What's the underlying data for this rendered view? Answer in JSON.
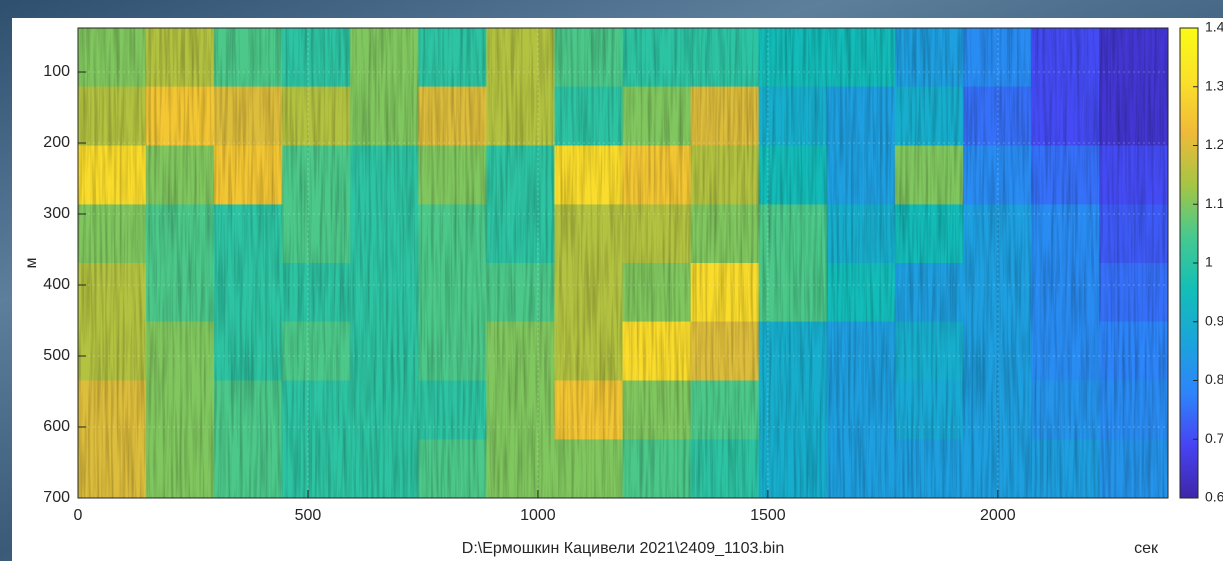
{
  "chart_data": {
    "type": "heatmap",
    "xlabel": "D:\\Ермошкин Кацивели 2021\\2409_1103.bin",
    "xunit": "сек",
    "ylabel": "м",
    "x": [
      74,
      222,
      370,
      518,
      666,
      814,
      962,
      1110,
      1258,
      1406,
      1554,
      1702,
      1850,
      1998,
      2146,
      2294
    ],
    "y": [
      79,
      162,
      245,
      328,
      410,
      493,
      576,
      659
    ],
    "z": [
      [
        1.1,
        1.15,
        1.05,
        1.0,
        1.1,
        1.0,
        1.15,
        1.05,
        1.0,
        1.0,
        0.95,
        0.95,
        0.85,
        0.8,
        0.7,
        0.65
      ],
      [
        1.15,
        1.25,
        1.2,
        1.15,
        1.1,
        1.2,
        1.15,
        1.0,
        1.1,
        1.2,
        0.9,
        0.85,
        0.9,
        0.75,
        0.7,
        0.65
      ],
      [
        1.3,
        1.1,
        1.25,
        1.05,
        1.0,
        1.1,
        1.0,
        1.3,
        1.25,
        1.15,
        0.95,
        0.85,
        1.1,
        0.8,
        0.75,
        0.7
      ],
      [
        1.1,
        1.05,
        1.0,
        1.05,
        1.0,
        1.05,
        1.0,
        1.15,
        1.15,
        1.1,
        1.05,
        0.9,
        0.95,
        0.85,
        0.8,
        0.72
      ],
      [
        1.15,
        1.05,
        1.0,
        1.0,
        1.0,
        1.05,
        1.05,
        1.15,
        1.1,
        1.3,
        1.05,
        0.95,
        0.85,
        0.85,
        0.8,
        0.75
      ],
      [
        1.15,
        1.1,
        1.0,
        1.05,
        1.0,
        1.05,
        1.1,
        1.15,
        1.3,
        1.2,
        0.9,
        0.85,
        0.9,
        0.85,
        0.8,
        0.78
      ],
      [
        1.2,
        1.1,
        1.05,
        1.0,
        1.0,
        1.0,
        1.1,
        1.25,
        1.1,
        1.05,
        0.9,
        0.85,
        0.88,
        0.85,
        0.82,
        0.8
      ],
      [
        1.2,
        1.1,
        1.05,
        1.0,
        1.0,
        1.05,
        1.1,
        1.1,
        1.05,
        1.0,
        0.9,
        0.85,
        0.85,
        0.85,
        0.85,
        0.82
      ]
    ],
    "xlim": [
      0,
      2370
    ],
    "xticks": [
      0,
      500,
      1000,
      1500,
      2000
    ],
    "ylim": [
      38,
      700
    ],
    "yticks": [
      100,
      200,
      300,
      400,
      500,
      600,
      700
    ],
    "y_reversed": true,
    "clim": [
      0.6,
      1.4
    ],
    "cticks": [
      0.6,
      0.7,
      0.8,
      0.9,
      1,
      1.1,
      1.2,
      1.3,
      1.4
    ],
    "colormap": [
      "#3e26a8",
      "#4743f3",
      "#2e84fb",
      "#1aa5da",
      "#13beb7",
      "#46c98f",
      "#a5c543",
      "#f0ba39",
      "#fbe12a",
      "#f9fb15"
    ],
    "grid": true
  }
}
